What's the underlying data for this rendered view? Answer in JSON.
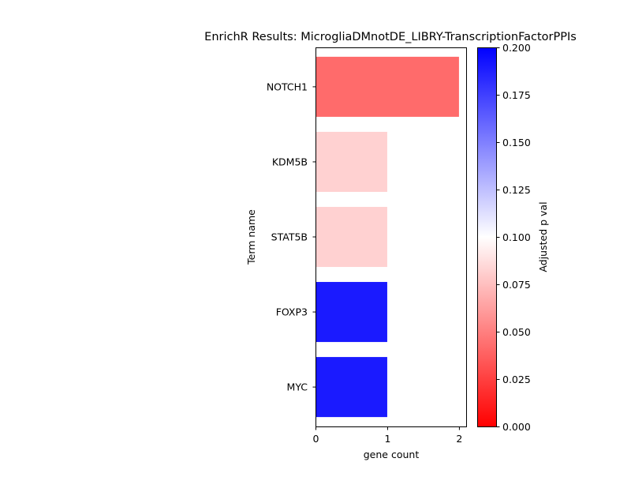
{
  "chart_data": {
    "type": "bar",
    "orientation": "horizontal",
    "title": "EnrichR Results: MicrogliaDMnotDE_LIBRY-TranscriptionFactorPPIs",
    "xlabel": "gene count",
    "ylabel": "Term name",
    "xlim": [
      0,
      2.1
    ],
    "x_ticks": [
      "0",
      "1",
      "2"
    ],
    "categories": [
      "NOTCH1",
      "KDM5B",
      "STAT5B",
      "FOXP3",
      "MYC"
    ],
    "values": [
      2,
      1,
      1,
      1,
      1
    ],
    "adjusted_p_values": [
      0.042,
      0.082,
      0.082,
      0.19,
      0.19
    ],
    "grid": false,
    "colorbar": {
      "label": "Adjusted p val",
      "range": [
        0,
        0.2
      ],
      "ticks": [
        "0.000",
        "0.025",
        "0.050",
        "0.075",
        "0.100",
        "0.125",
        "0.150",
        "0.175",
        "0.200"
      ],
      "colormap": "bwr_r",
      "color_low": "#ff0000",
      "color_mid": "#ffffff",
      "color_high": "#0000ff"
    }
  }
}
